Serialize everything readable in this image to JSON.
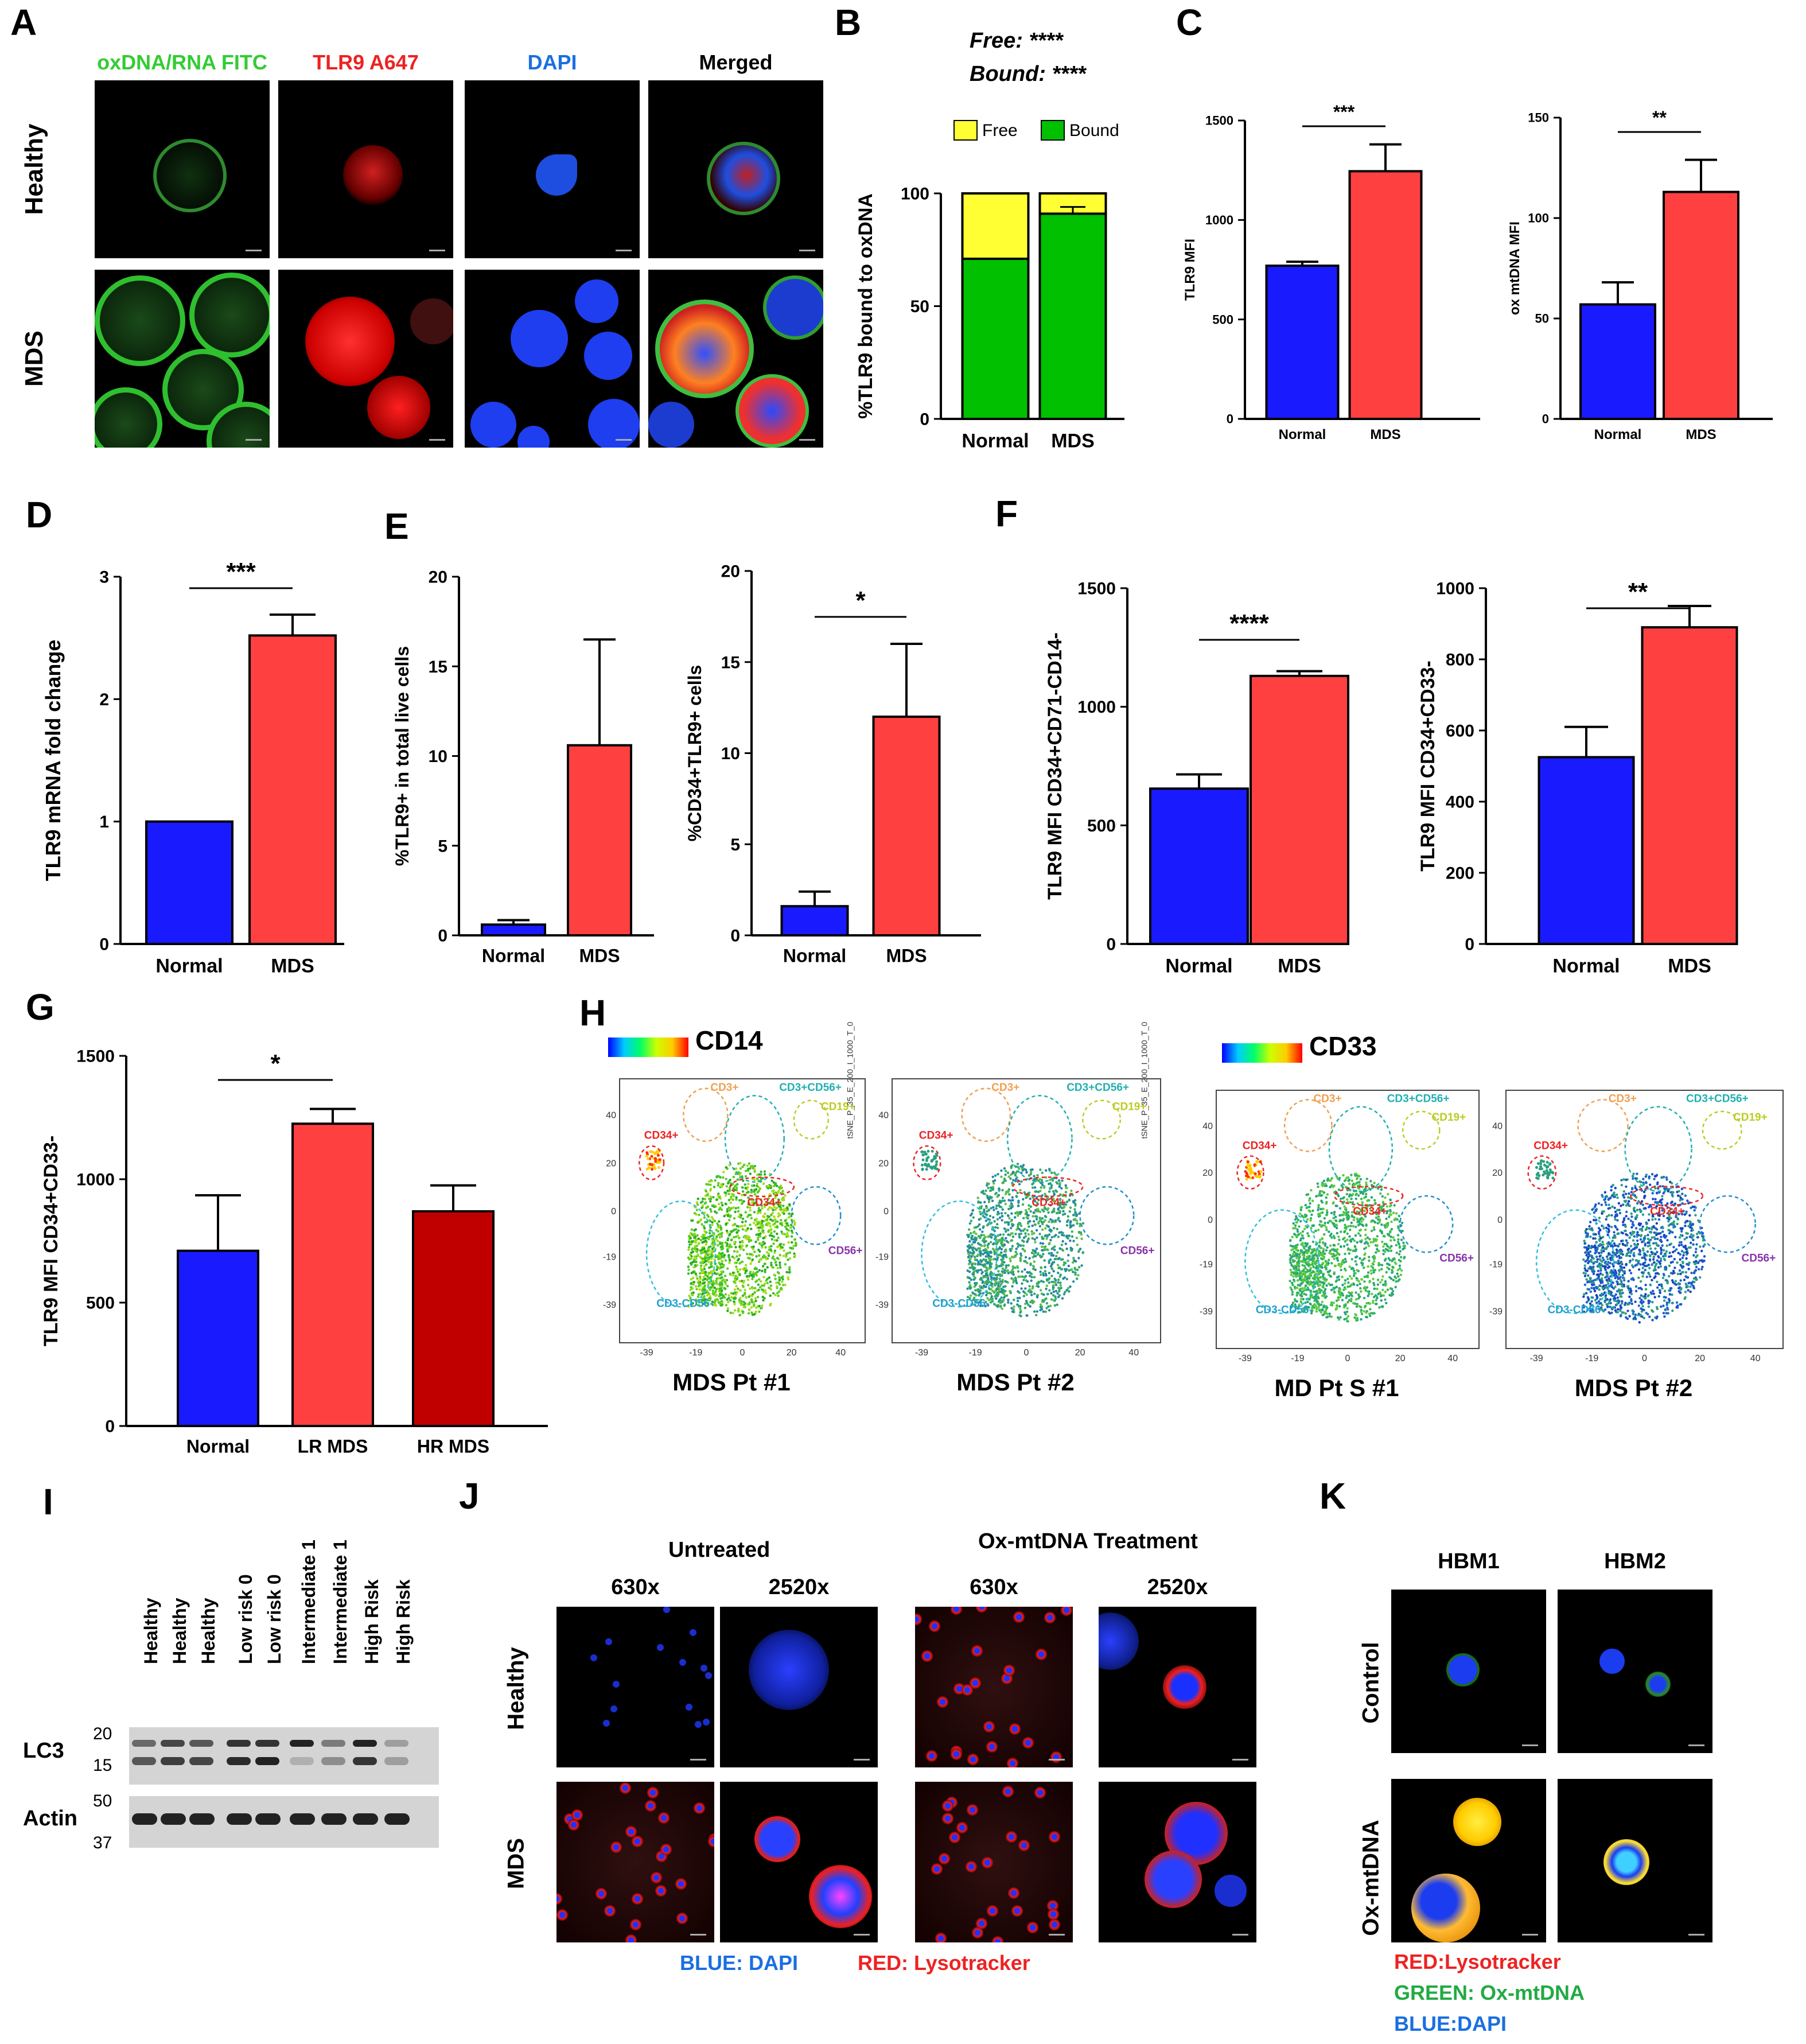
{
  "panels": {
    "A": {
      "label": "A",
      "columns": [
        "oxDNA/RNA FITC",
        "TLR9 A647",
        "DAPI",
        "Merged"
      ],
      "column_colors": [
        "#33cc33",
        "#ee2222",
        "#1a6fe0",
        "#000000"
      ],
      "rows": [
        "Healthy",
        "MDS"
      ]
    },
    "B": {
      "label": "B",
      "free_text": "Free: ****",
      "bound_text": "Bound: ****"
    },
    "C": {
      "label": "C",
      "sig_left": "***",
      "sig_right": "**"
    },
    "D": {
      "label": "D",
      "sig": "***"
    },
    "E": {
      "label": "E",
      "sig_right": "*"
    },
    "F": {
      "label": "F",
      "sig_left": "****",
      "sig_right": "**"
    },
    "G": {
      "label": "G",
      "sig": "*"
    },
    "H": {
      "label": "H",
      "scale_left": "CD14",
      "scale_right": "CD33",
      "plot_titles": [
        "MDS Pt #1",
        "MDS Pt #2",
        "MD Pt S #1",
        "MDS Pt #2"
      ],
      "gate_labels": [
        "CD3+",
        "CD3+CD56+",
        "CD19+",
        "CD34+",
        "CD34+",
        "CD56+",
        "CD3-CD56-"
      ],
      "tsne_axis": "tSNE_P_35_E_200_I_1000_T_0",
      "ticks_y": [
        "40",
        "20",
        "0",
        "-19",
        "-39"
      ],
      "ticks_x": [
        "-39",
        "-19",
        "0",
        "20",
        "40"
      ]
    },
    "I": {
      "label": "I",
      "lanes": [
        "Healthy",
        "Healthy",
        "Healthy",
        "Low risk 0",
        "Low risk 0",
        "Intermediate 1",
        "Intermediate 1",
        "High Risk",
        "High Risk"
      ],
      "lc3_label": "LC3",
      "actin_label": "Actin",
      "lc3_markers": [
        "20",
        "15"
      ],
      "actin_markers": [
        "50",
        "37"
      ]
    },
    "J": {
      "label": "J",
      "groups": [
        "Untreated",
        "Ox-mtDNA Treatment"
      ],
      "mags": [
        "630x",
        "2520x",
        "630x",
        "2520x"
      ],
      "rows": [
        "Healthy",
        "MDS"
      ],
      "legend_blue": "BLUE: DAPI",
      "legend_red": "RED: Lysotracker"
    },
    "K": {
      "label": "K",
      "columns": [
        "HBM1",
        "HBM2"
      ],
      "rows": [
        "Control",
        "Ox-mtDNA"
      ],
      "legend": [
        "RED:Lysotracker",
        "GREEN: Ox-mtDNA",
        "BLUE:DAPI"
      ]
    }
  },
  "colors": {
    "normal": "#1a1aff",
    "mds": "#ff4040",
    "hr_mds": "#c00000",
    "free": "#ffff33",
    "bound": "#00c000"
  },
  "chart_data": [
    {
      "id": "B",
      "type": "bar",
      "stacked": true,
      "categories": [
        "Normal",
        "MDS"
      ],
      "series": [
        {
          "name": "Bound",
          "values": [
            71,
            91
          ],
          "errors": [
            4,
            2
          ]
        },
        {
          "name": "Free",
          "values": [
            29,
            9
          ],
          "errors": [
            0,
            3
          ]
        }
      ],
      "ylabel": "%TLR9  bound to oxDNA",
      "ylim": [
        0,
        100
      ],
      "yticks": [
        0,
        50,
        100
      ],
      "legend": "top"
    },
    {
      "id": "C1",
      "type": "bar",
      "categories": [
        "Normal",
        "MDS"
      ],
      "values": [
        770,
        1245
      ],
      "errors": [
        20,
        135
      ],
      "ylabel": "TLR9 MFI",
      "ylim": [
        0,
        1500
      ],
      "yticks": [
        0,
        500,
        1000,
        1500
      ]
    },
    {
      "id": "C2",
      "type": "bar",
      "categories": [
        "Normal",
        "MDS"
      ],
      "values": [
        57,
        113
      ],
      "errors": [
        11,
        16
      ],
      "ylabel": "ox mtDNA MFI",
      "ylim": [
        0,
        150
      ],
      "yticks": [
        0,
        50,
        100,
        150
      ]
    },
    {
      "id": "D",
      "type": "bar",
      "categories": [
        "Normal",
        "MDS"
      ],
      "values": [
        1.0,
        2.52
      ],
      "errors": [
        0,
        0.17
      ],
      "ylabel": "TLR9 mRNA fold change",
      "ylim": [
        0,
        3
      ],
      "yticks": [
        0,
        1,
        2,
        3
      ]
    },
    {
      "id": "E1",
      "type": "bar",
      "categories": [
        "Normal",
        "MDS"
      ],
      "values": [
        0.6,
        10.6
      ],
      "errors": [
        0.25,
        5.9
      ],
      "ylabel": "%TLR9+ in total live cells",
      "ylim": [
        0,
        20
      ],
      "yticks": [
        0,
        5,
        10,
        15,
        20
      ]
    },
    {
      "id": "E2",
      "type": "bar",
      "categories": [
        "Normal",
        "MDS"
      ],
      "values": [
        1.6,
        12.0
      ],
      "errors": [
        0.8,
        4.0
      ],
      "ylabel": "%CD34+TLR9+ cells",
      "ylim": [
        0,
        20
      ],
      "yticks": [
        0,
        5,
        10,
        15,
        20
      ]
    },
    {
      "id": "F1",
      "type": "bar",
      "categories": [
        "Normal",
        "MDS"
      ],
      "values": [
        655,
        1130
      ],
      "errors": [
        60,
        20
      ],
      "ylabel": "TLR9 MFI CD34+CD71-CD14-",
      "ylim": [
        0,
        1500
      ],
      "yticks": [
        0,
        500,
        1000,
        1500
      ]
    },
    {
      "id": "F2",
      "type": "bar",
      "categories": [
        "Normal",
        "MDS"
      ],
      "values": [
        525,
        890
      ],
      "errors": [
        85,
        60
      ],
      "ylabel": "TLR9 MFI CD34+CD33-",
      "ylim": [
        0,
        1000
      ],
      "yticks": [
        0,
        200,
        400,
        600,
        800,
        1000
      ]
    },
    {
      "id": "G",
      "type": "bar",
      "categories": [
        "Normal",
        "LR MDS",
        "HR MDS"
      ],
      "values": [
        710,
        1225,
        870
      ],
      "errors": [
        225,
        60,
        105
      ],
      "ylabel": "TLR9 MFI CD34+CD33-",
      "ylim": [
        0,
        1500
      ],
      "yticks": [
        0,
        500,
        1000,
        1500
      ]
    }
  ]
}
